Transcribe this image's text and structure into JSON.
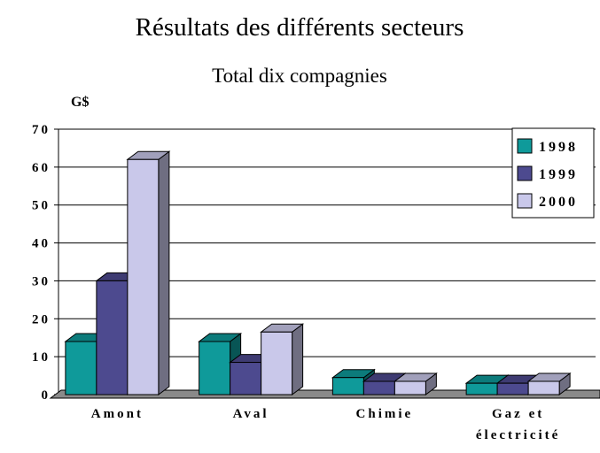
{
  "chart_data": {
    "type": "bar3d",
    "title": "Résultats des différents secteurs",
    "subtitle": "Total dix compagnies",
    "y_label": "G$",
    "categories": [
      "Amont",
      "Aval",
      "Chimie",
      "Gaz et électricité"
    ],
    "series": [
      {
        "name": "1998",
        "color": "#0f9a9a",
        "values": [
          14,
          14,
          4.5,
          3
        ]
      },
      {
        "name": "1999",
        "color": "#4d4a8f",
        "values": [
          30,
          8.5,
          3.5,
          3
        ]
      },
      {
        "name": "2000",
        "color": "#c9c8ea",
        "values": [
          62,
          16.5,
          3.5,
          3.5
        ]
      }
    ],
    "ylim": [
      0,
      70
    ],
    "yticks": [
      0,
      10,
      20,
      30,
      40,
      50,
      60,
      70
    ],
    "grid": true,
    "legend": "upper right"
  }
}
